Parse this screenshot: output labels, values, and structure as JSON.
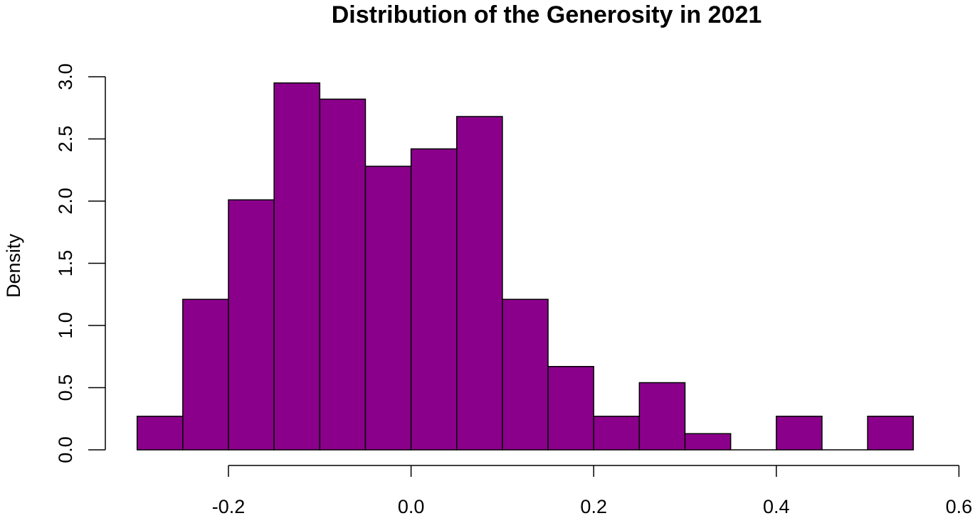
{
  "chart_data": {
    "type": "bar",
    "title": "Distribution of the Generosity in 2021",
    "xlabel": "",
    "ylabel": "Density",
    "bin_edges": [
      -0.3,
      -0.25,
      -0.2,
      -0.15,
      -0.1,
      -0.05,
      0.0,
      0.05,
      0.1,
      0.15,
      0.2,
      0.25,
      0.3,
      0.35,
      0.4,
      0.45,
      0.5,
      0.55
    ],
    "values": [
      0.27,
      1.21,
      2.01,
      2.95,
      2.82,
      2.28,
      2.42,
      2.68,
      1.21,
      0.67,
      0.27,
      0.54,
      0.13,
      0.0,
      0.27,
      0.0,
      0.27
    ],
    "x_ticks": [
      "-0.2",
      "0.0",
      "0.2",
      "0.4",
      "0.6"
    ],
    "y_ticks": [
      "0.0",
      "0.5",
      "1.0",
      "1.5",
      "2.0",
      "2.5",
      "3.0"
    ],
    "xlim": [
      -0.3,
      0.6
    ],
    "ylim": [
      0,
      3.0
    ],
    "grid": false,
    "colors": {
      "bar_fill": "#8B008B",
      "bar_stroke": "#000000"
    }
  }
}
